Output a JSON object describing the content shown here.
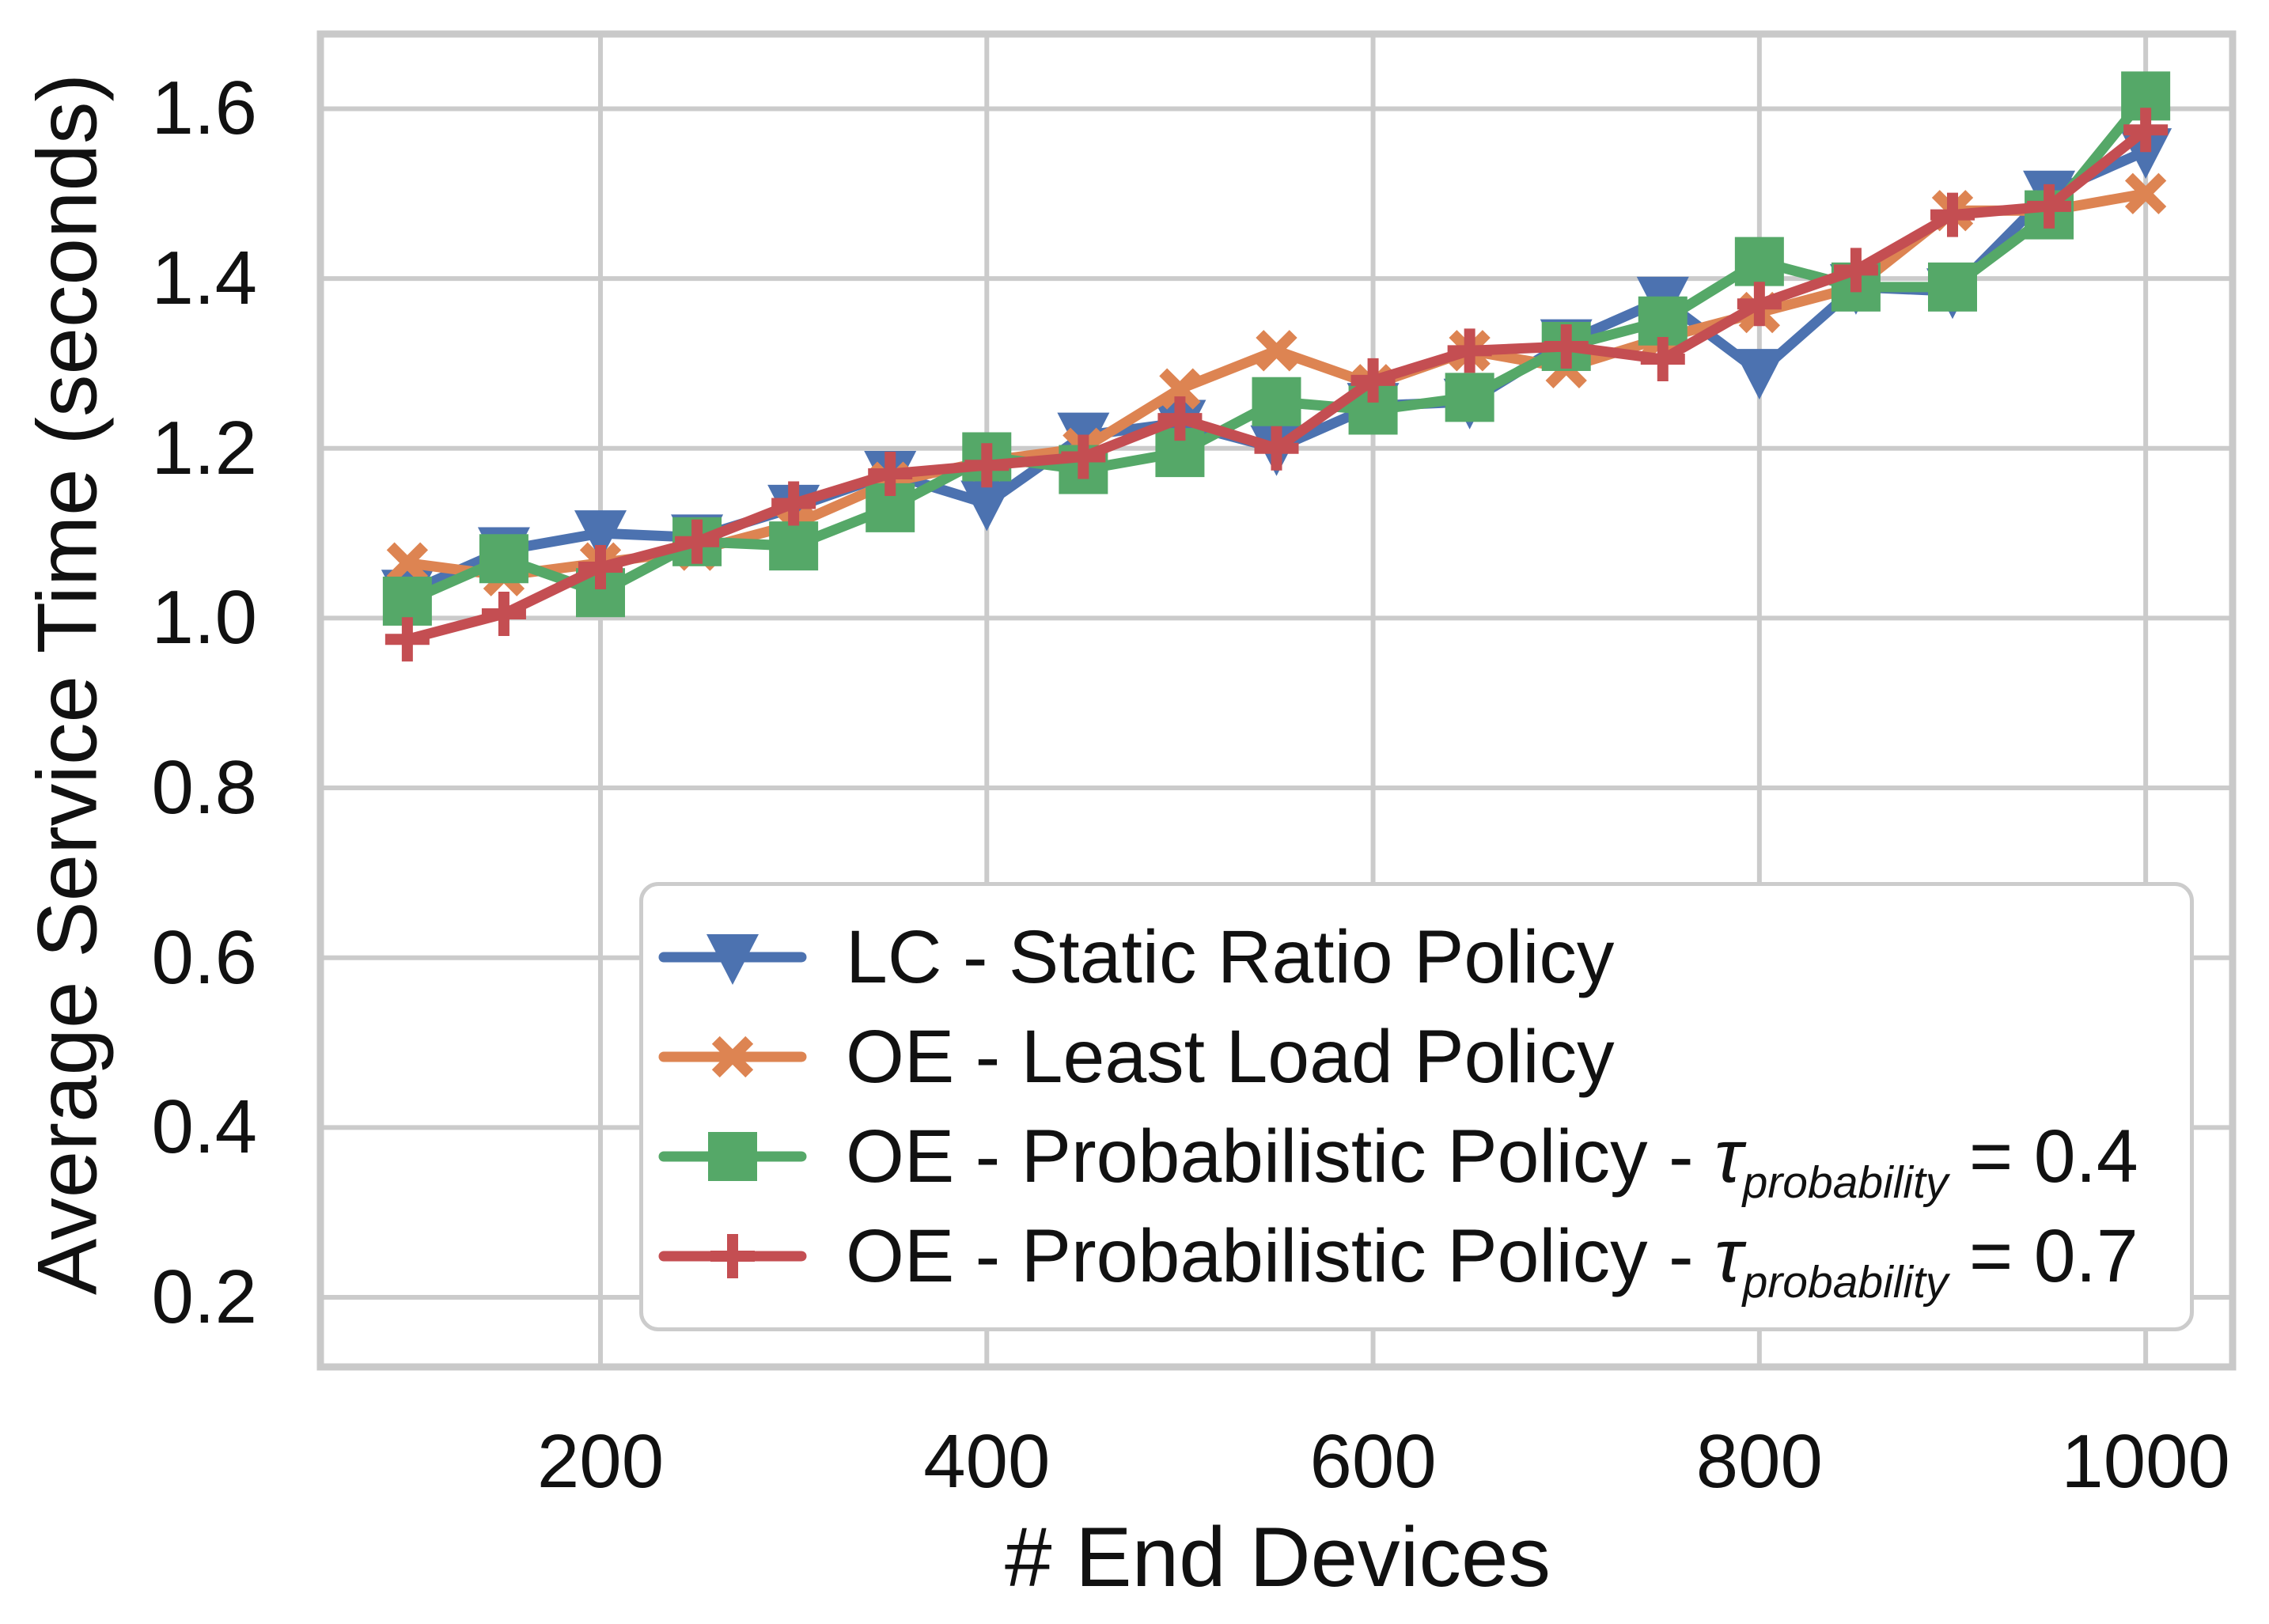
{
  "chart_data": {
    "type": "line",
    "title": "",
    "x_label": "# End Devices",
    "y_label": "Average Service Time (seconds)",
    "x": [
      100,
      150,
      200,
      250,
      300,
      350,
      400,
      450,
      500,
      550,
      600,
      650,
      700,
      750,
      800,
      850,
      900,
      950,
      1000
    ],
    "x_ticks": [
      200,
      400,
      600,
      800,
      1000
    ],
    "y_ticks": [
      0.2,
      0.4,
      0.6,
      0.8,
      1.0,
      1.2,
      1.4,
      1.6
    ],
    "xlim": [
      55,
      1045
    ],
    "ylim": [
      0.118,
      1.688
    ],
    "grid": true,
    "grid_color": "#cbcbcb",
    "spine_color": "#c9c9c9",
    "legend_position": "inside-lower-center",
    "series": [
      {
        "name": "LC - Static Ratio Policy",
        "name_prefix": "LC - Static Ratio Policy",
        "name_tau": "",
        "name_sub": "",
        "name_suffix": "",
        "color": "#4C72B0",
        "marker": "triangle-down",
        "values": [
          1.03,
          1.08,
          1.1,
          1.095,
          1.13,
          1.17,
          1.135,
          1.215,
          1.23,
          1.2,
          1.25,
          1.255,
          1.325,
          1.375,
          1.29,
          1.39,
          1.385,
          1.5,
          1.55
        ]
      },
      {
        "name": "OE - Least Load Policy",
        "name_prefix": "OE - Least Load Policy",
        "name_tau": "",
        "name_sub": "",
        "name_suffix": "",
        "color": "#DD8452",
        "marker": "x",
        "values": [
          1.065,
          1.05,
          1.065,
          1.08,
          1.11,
          1.16,
          1.185,
          1.2,
          1.27,
          1.315,
          1.275,
          1.315,
          1.295,
          1.33,
          1.36,
          1.39,
          1.48,
          1.48,
          1.5
        ]
      },
      {
        "name": "OE - Probabilistic Policy - τ_probability = 0.4",
        "name_prefix": "OE - Probabilistic Policy - ",
        "name_tau": "τ",
        "name_sub": "probability",
        "name_suffix": " = 0.4",
        "color": "#55A868",
        "marker": "square",
        "values": [
          1.02,
          1.07,
          1.03,
          1.09,
          1.085,
          1.13,
          1.19,
          1.175,
          1.195,
          1.255,
          1.245,
          1.26,
          1.32,
          1.35,
          1.42,
          1.39,
          1.39,
          1.475,
          1.615
        ]
      },
      {
        "name": "OE - Probabilistic Policy - τ_probability = 0.7",
        "name_prefix": "OE - Probabilistic Policy - ",
        "name_tau": "τ",
        "name_sub": "probability",
        "name_suffix": " = 0.7",
        "color": "#C44E52",
        "marker": "plus",
        "values": [
          0.975,
          1.005,
          1.06,
          1.09,
          1.135,
          1.17,
          1.18,
          1.19,
          1.235,
          1.2,
          1.28,
          1.315,
          1.32,
          1.305,
          1.37,
          1.41,
          1.475,
          1.485,
          1.575
        ]
      }
    ]
  }
}
